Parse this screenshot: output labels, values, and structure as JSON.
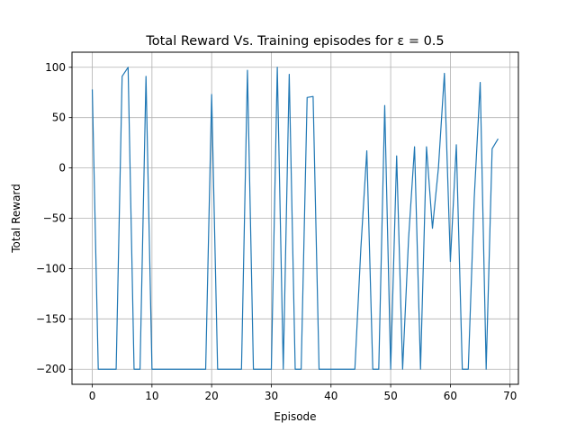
{
  "chart_data": {
    "type": "line",
    "title": "Total Reward Vs. Training episodes for ε = 0.5",
    "xlabel": "Episode",
    "ylabel": "Total Reward",
    "xlim": [
      -3.4,
      71.4
    ],
    "ylim": [
      -215,
      115
    ],
    "xticks": [
      0,
      10,
      20,
      30,
      40,
      50,
      60,
      70
    ],
    "yticks": [
      -200,
      -150,
      -100,
      -50,
      0,
      50,
      100
    ],
    "xtick_labels": [
      "0",
      "10",
      "20",
      "30",
      "40",
      "50",
      "60",
      "70"
    ],
    "ytick_labels": [
      "−200",
      "−150",
      "−100",
      "−50",
      "0",
      "50",
      "100"
    ],
    "grid": true,
    "line_color": "#1f77b4",
    "series": [
      {
        "x": [
          0,
          1,
          2,
          3,
          4,
          5,
          6,
          7,
          8,
          9,
          10,
          11,
          12,
          13,
          14,
          15,
          16,
          17,
          18,
          19,
          20,
          21,
          22,
          23,
          24,
          25,
          26,
          27,
          28,
          29,
          30,
          31,
          32,
          33,
          34,
          35,
          36,
          37,
          38,
          39,
          40,
          41,
          42,
          43,
          44,
          45,
          46,
          47,
          48,
          49,
          50,
          51,
          52,
          53,
          54,
          55,
          56,
          57,
          58,
          59,
          60,
          61,
          62,
          63,
          64,
          65,
          66,
          67,
          68
        ],
        "values": [
          78,
          -200,
          -200,
          -200,
          -200,
          91,
          100,
          -200,
          -200,
          91,
          -200,
          -200,
          -200,
          -200,
          -200,
          -200,
          -200,
          -200,
          -200,
          -200,
          73,
          -200,
          -200,
          -200,
          -200,
          -200,
          97,
          -200,
          -200,
          -200,
          -200,
          100,
          -200,
          93,
          -200,
          -200,
          70,
          71,
          -200,
          -200,
          -200,
          -200,
          -200,
          -200,
          -200,
          -80,
          17,
          -200,
          -200,
          62,
          -200,
          12,
          -200,
          -70,
          21,
          -200,
          21,
          -60,
          0,
          94,
          -93,
          23,
          -200,
          -200,
          -30,
          85,
          -200,
          19,
          29
        ]
      }
    ]
  }
}
